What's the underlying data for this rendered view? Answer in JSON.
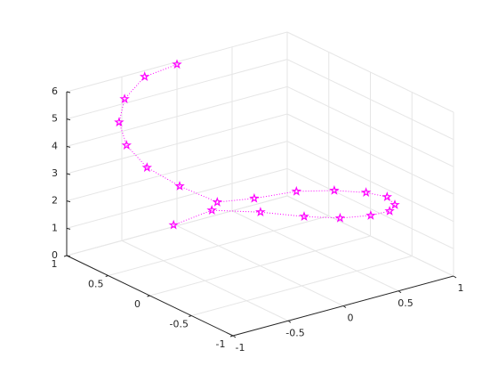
{
  "chart_data": {
    "type": "line3d",
    "x": [
      -0.34,
      0.06,
      0.32,
      0.52,
      0.71,
      0.92,
      0.82,
      0.86,
      0.91,
      0.84,
      0.68,
      0.45,
      0.12,
      -0.14,
      -0.33,
      -0.46,
      -0.54,
      -0.57,
      -0.52,
      -0.3,
      -0.03
    ],
    "y": [
      0.59,
      0.66,
      0.42,
      0.16,
      -0.02,
      -0.11,
      -0.47,
      -0.48,
      -0.32,
      -0.16,
      0.01,
      0.16,
      0.23,
      0.33,
      0.53,
      0.75,
      0.89,
      0.94,
      0.94,
      0.99,
      0.96
    ],
    "z": [
      1,
      1,
      1,
      1,
      1,
      1,
      1.8,
      2,
      2,
      2,
      2,
      2,
      2,
      2,
      2.5,
      3,
      3.7,
      4.5,
      5.3,
      5.8,
      6
    ],
    "color": "#ff00ff",
    "marker": "pentagram",
    "line_style": "dotted",
    "xlim": [
      -1,
      1
    ],
    "ylim": [
      -1,
      1
    ],
    "zlim": [
      0,
      6
    ],
    "xticks": [
      -1,
      -0.5,
      0,
      0.5,
      1
    ],
    "yticks": [
      -1,
      -0.5,
      0,
      0.5,
      1
    ],
    "zticks": [
      0,
      1,
      2,
      3,
      4,
      5,
      6
    ],
    "grid": true
  }
}
